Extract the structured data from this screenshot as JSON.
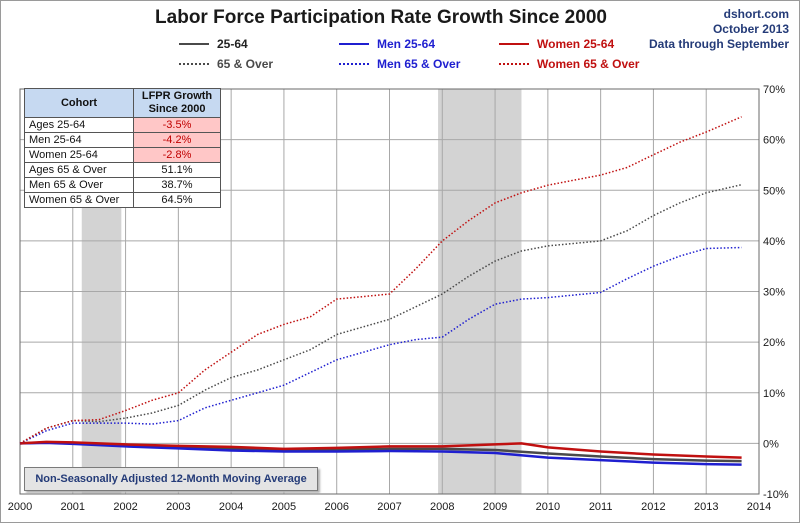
{
  "title": "Labor Force Participation Rate Growth Since 2000",
  "source": {
    "site": "dshort.com",
    "date": "October 2013",
    "note": "Data through September"
  },
  "footnote": "Non-Seasonally Adjusted 12-Month Moving Average",
  "colors": {
    "black": "#4a4a4a",
    "blue": "#1f1fd0",
    "red": "#c01010",
    "recession": "#d3d3d3"
  },
  "legend": [
    {
      "label": "25-64",
      "color": "#4a4a4a",
      "style": "solid"
    },
    {
      "label": "Men 25-64",
      "color": "#1f1fd0",
      "style": "solid"
    },
    {
      "label": "Women 25-64",
      "color": "#c01010",
      "style": "solid"
    },
    {
      "label": "65 & Over",
      "color": "#4a4a4a",
      "style": "dotted"
    },
    {
      "label": "Men 65 & Over",
      "color": "#1f1fd0",
      "style": "dotted"
    },
    {
      "label": "Women 65 & Over",
      "color": "#c01010",
      "style": "dotted"
    }
  ],
  "table": {
    "headers": [
      "Cohort",
      "LFPR Growth Since 2000"
    ],
    "rows": [
      {
        "cohort": "Ages 25-64",
        "growth": "-3.5%",
        "highlight": true
      },
      {
        "cohort": "Men 25-64",
        "growth": "-4.2%",
        "highlight": true
      },
      {
        "cohort": "Women 25-64",
        "growth": "-2.8%",
        "highlight": true
      },
      {
        "cohort": "Ages 65 & Over",
        "growth": "51.1%",
        "highlight": false
      },
      {
        "cohort": "Men 65 & Over",
        "growth": "38.7%",
        "highlight": false
      },
      {
        "cohort": "Women 65 & Over",
        "growth": "64.5%",
        "highlight": false
      }
    ]
  },
  "chart_data": {
    "type": "line",
    "title": "Labor Force Participation Rate Growth Since 2000",
    "xlabel": "",
    "ylabel": "",
    "xlim": [
      2000,
      2014
    ],
    "ylim": [
      -10,
      70
    ],
    "x_ticks": [
      "2000",
      "2001",
      "2002",
      "2003",
      "2004",
      "2005",
      "2006",
      "2007",
      "2008",
      "2009",
      "2010",
      "2011",
      "2012",
      "2013",
      "2014"
    ],
    "y_ticks": [
      "-10%",
      "0%",
      "10%",
      "20%",
      "30%",
      "40%",
      "50%",
      "60%",
      "70%"
    ],
    "y_axis_side": "right",
    "grid": true,
    "recessions": [
      [
        2001.17,
        2001.92
      ],
      [
        2007.92,
        2009.5
      ]
    ],
    "series": [
      {
        "name": "25-64",
        "color": "#4a4a4a",
        "style": "solid",
        "points": [
          [
            2000,
            0
          ],
          [
            2000.5,
            0.2
          ],
          [
            2001,
            0.1
          ],
          [
            2002,
            -0.4
          ],
          [
            2003,
            -0.8
          ],
          [
            2004,
            -1.1
          ],
          [
            2005,
            -1.3
          ],
          [
            2006,
            -1.2
          ],
          [
            2007,
            -1.1
          ],
          [
            2008,
            -1.1
          ],
          [
            2009,
            -1.3
          ],
          [
            2010,
            -2.0
          ],
          [
            2011,
            -2.6
          ],
          [
            2012,
            -3.1
          ],
          [
            2013,
            -3.4
          ],
          [
            2013.67,
            -3.5
          ]
        ]
      },
      {
        "name": "Men 25-64",
        "color": "#1f1fd0",
        "style": "solid",
        "points": [
          [
            2000,
            0
          ],
          [
            2000.5,
            0.1
          ],
          [
            2001,
            -0.1
          ],
          [
            2002,
            -0.6
          ],
          [
            2003,
            -1.0
          ],
          [
            2004,
            -1.4
          ],
          [
            2005,
            -1.6
          ],
          [
            2006,
            -1.6
          ],
          [
            2007,
            -1.5
          ],
          [
            2008,
            -1.6
          ],
          [
            2009,
            -1.9
          ],
          [
            2010,
            -2.8
          ],
          [
            2011,
            -3.3
          ],
          [
            2012,
            -3.8
          ],
          [
            2013,
            -4.1
          ],
          [
            2013.67,
            -4.2
          ]
        ]
      },
      {
        "name": "Women 25-64",
        "color": "#c01010",
        "style": "solid",
        "points": [
          [
            2000,
            0
          ],
          [
            2000.5,
            0.3
          ],
          [
            2001,
            0.2
          ],
          [
            2002,
            -0.2
          ],
          [
            2003,
            -0.5
          ],
          [
            2004,
            -0.7
          ],
          [
            2005,
            -1.1
          ],
          [
            2006,
            -0.9
          ],
          [
            2007,
            -0.6
          ],
          [
            2008,
            -0.6
          ],
          [
            2009,
            -0.2
          ],
          [
            2009.5,
            0
          ],
          [
            2010,
            -0.8
          ],
          [
            2011,
            -1.6
          ],
          [
            2012,
            -2.2
          ],
          [
            2013,
            -2.6
          ],
          [
            2013.67,
            -2.8
          ]
        ]
      },
      {
        "name": "65 & Over",
        "color": "#4a4a4a",
        "style": "dotted",
        "points": [
          [
            2000,
            0
          ],
          [
            2000.5,
            3
          ],
          [
            2001,
            4.5
          ],
          [
            2001.5,
            4.3
          ],
          [
            2002,
            5.0
          ],
          [
            2002.5,
            6.0
          ],
          [
            2003,
            7.5
          ],
          [
            2003.5,
            10.5
          ],
          [
            2004,
            13.0
          ],
          [
            2004.5,
            14.5
          ],
          [
            2005,
            16.5
          ],
          [
            2005.5,
            18.5
          ],
          [
            2006,
            21.5
          ],
          [
            2006.5,
            23
          ],
          [
            2007,
            24.5
          ],
          [
            2007.5,
            27.0
          ],
          [
            2008,
            29.5
          ],
          [
            2008.5,
            33.0
          ],
          [
            2009,
            36.0
          ],
          [
            2009.5,
            38.0
          ],
          [
            2010,
            39.0
          ],
          [
            2010.5,
            39.5
          ],
          [
            2011,
            40.0
          ],
          [
            2011.5,
            42.0
          ],
          [
            2012,
            45.0
          ],
          [
            2012.5,
            47.5
          ],
          [
            2013,
            49.5
          ],
          [
            2013.67,
            51.1
          ]
        ]
      },
      {
        "name": "Men 65 & Over",
        "color": "#1f1fd0",
        "style": "dotted",
        "points": [
          [
            2000,
            0
          ],
          [
            2000.5,
            2.5
          ],
          [
            2001,
            4.0
          ],
          [
            2001.5,
            4.0
          ],
          [
            2002,
            4.0
          ],
          [
            2002.5,
            3.8
          ],
          [
            2003,
            4.5
          ],
          [
            2003.5,
            7.0
          ],
          [
            2004,
            8.5
          ],
          [
            2004.5,
            10
          ],
          [
            2005,
            11.5
          ],
          [
            2005.5,
            14.0
          ],
          [
            2006,
            16.5
          ],
          [
            2006.5,
            18
          ],
          [
            2007,
            19.5
          ],
          [
            2007.5,
            20.5
          ],
          [
            2008,
            21.0
          ],
          [
            2008.5,
            24.5
          ],
          [
            2009,
            27.5
          ],
          [
            2009.5,
            28.5
          ],
          [
            2010,
            28.8
          ],
          [
            2010.5,
            29.3
          ],
          [
            2011,
            29.8
          ],
          [
            2011.5,
            32.5
          ],
          [
            2012,
            35.0
          ],
          [
            2012.5,
            37.0
          ],
          [
            2013,
            38.5
          ],
          [
            2013.67,
            38.7
          ]
        ]
      },
      {
        "name": "Women 65 & Over",
        "color": "#c01010",
        "style": "dotted",
        "points": [
          [
            2000,
            0
          ],
          [
            2000.5,
            3.0
          ],
          [
            2001,
            4.5
          ],
          [
            2001.5,
            4.7
          ],
          [
            2002,
            6.5
          ],
          [
            2002.5,
            8.5
          ],
          [
            2003,
            10.0
          ],
          [
            2003.5,
            14.5
          ],
          [
            2004,
            18.0
          ],
          [
            2004.5,
            21.5
          ],
          [
            2005,
            23.5
          ],
          [
            2005.5,
            25.0
          ],
          [
            2006,
            28.5
          ],
          [
            2006.5,
            29.0
          ],
          [
            2007,
            29.5
          ],
          [
            2007.5,
            34.5
          ],
          [
            2008,
            40.0
          ],
          [
            2008.5,
            44.0
          ],
          [
            2009,
            47.5
          ],
          [
            2009.5,
            49.5
          ],
          [
            2010,
            51.0
          ],
          [
            2010.5,
            52.0
          ],
          [
            2011,
            53.0
          ],
          [
            2011.5,
            54.5
          ],
          [
            2012,
            57.0
          ],
          [
            2012.5,
            59.5
          ],
          [
            2013,
            61.5
          ],
          [
            2013.67,
            64.5
          ]
        ]
      }
    ]
  }
}
